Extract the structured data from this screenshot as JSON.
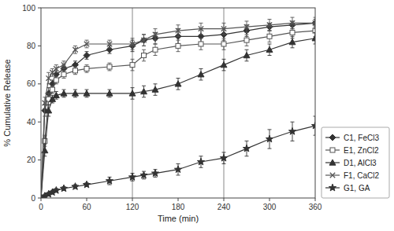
{
  "chart_data": {
    "type": "line",
    "xlabel": "Time (min)",
    "ylabel": "% Cumulative Release",
    "xlim": [
      0,
      360
    ],
    "ylim": [
      0,
      100
    ],
    "xticks": [
      0,
      60,
      120,
      180,
      240,
      300,
      360
    ],
    "yticks": [
      0,
      20,
      40,
      60,
      80,
      100
    ],
    "grid": false,
    "legend": "lower right",
    "vlines": [
      120,
      240
    ],
    "x": [
      0,
      5,
      10,
      15,
      20,
      30,
      45,
      60,
      90,
      120,
      135,
      150,
      180,
      210,
      240,
      270,
      300,
      330,
      360
    ],
    "series": [
      {
        "name": "C1, FeCl3",
        "color": "#333333",
        "marker": "diamond",
        "values": [
          0,
          46,
          55,
          60,
          65,
          68,
          70,
          75,
          78,
          80,
          83,
          84,
          85,
          85,
          86,
          88,
          90,
          91,
          92
        ],
        "errors": [
          0,
          3,
          3,
          2,
          2,
          2,
          2,
          2,
          2,
          3,
          3,
          3,
          4,
          4,
          3,
          3,
          2,
          2,
          2
        ]
      },
      {
        "name": "E1, ZnCl2",
        "color": "#555555",
        "marker": "square-open",
        "values": [
          0,
          30,
          52,
          57,
          62,
          65,
          67,
          68,
          69,
          70,
          75,
          78,
          80,
          81,
          81,
          83,
          85,
          87,
          88
        ],
        "errors": [
          0,
          3,
          3,
          2,
          2,
          2,
          2,
          2,
          2,
          3,
          3,
          3,
          3,
          3,
          3,
          3,
          3,
          3,
          3
        ]
      },
      {
        "name": "D1, AlCl3",
        "color": "#333333",
        "marker": "triangle",
        "values": [
          0,
          25,
          46,
          52,
          54,
          55,
          55,
          55,
          55,
          55,
          56,
          57,
          60,
          65,
          70,
          75,
          78,
          82,
          84
        ],
        "errors": [
          0,
          3,
          3,
          2,
          2,
          2,
          2,
          2,
          2,
          3,
          3,
          3,
          3,
          3,
          3,
          3,
          3,
          3,
          3
        ]
      },
      {
        "name": "F1, CaCl2",
        "color": "#555555",
        "marker": "x",
        "values": [
          0,
          50,
          63,
          66,
          68,
          70,
          78,
          81,
          81,
          81,
          83,
          86,
          88,
          89,
          89,
          90,
          91,
          92,
          92
        ],
        "errors": [
          0,
          3,
          3,
          2,
          2,
          2,
          2,
          2,
          2,
          3,
          3,
          3,
          3,
          3,
          3,
          3,
          3,
          3,
          3
        ]
      },
      {
        "name": "G1, GA",
        "color": "#333333",
        "marker": "star",
        "values": [
          0,
          1,
          2,
          3,
          4,
          5,
          6,
          7,
          9,
          11,
          12,
          13,
          15,
          19,
          21,
          26,
          31,
          35,
          38
        ],
        "errors": [
          0,
          1,
          1,
          1,
          1,
          1,
          1,
          1,
          2,
          2,
          2,
          2,
          3,
          3,
          3,
          4,
          5,
          5,
          5
        ]
      }
    ]
  }
}
